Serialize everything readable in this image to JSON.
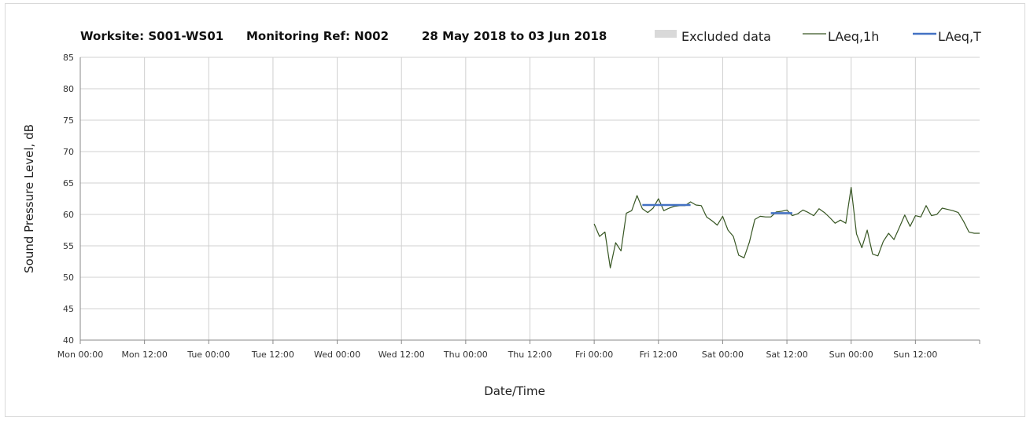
{
  "chart_data": {
    "type": "line",
    "title_parts": {
      "worksite": "Worksite: S001-WS01",
      "monitoring_ref": "Monitoring Ref: N002",
      "period": "28 May 2018 to 03 Jun 2018"
    },
    "xlabel": "Date/Time",
    "ylabel": "Sound Pressure Level, dB",
    "ylim": [
      40,
      85
    ],
    "yticks": [
      "40",
      "45",
      "50",
      "55",
      "60",
      "65",
      "70",
      "75",
      "80",
      "85"
    ],
    "xticks": [
      "Mon 00:00",
      "Mon 12:00",
      "Tue 00:00",
      "Tue 12:00",
      "Wed 00:00",
      "Wed 12:00",
      "Thu 00:00",
      "Thu 12:00",
      "Fri 00:00",
      "Fri 12:00",
      "Sat 00:00",
      "Sat 12:00",
      "Sun 00:00",
      "Sun 12:00"
    ],
    "xlim_hours": [
      0,
      168
    ],
    "grid": true,
    "legend_position": "top-right",
    "legend": [
      {
        "label": "Excluded data",
        "color": "#d9d9d9",
        "kind": "box"
      },
      {
        "label": "LAeq,1h",
        "color": "#375623",
        "kind": "line"
      },
      {
        "label": "LAeq,T",
        "color": "#4472c4",
        "kind": "line"
      }
    ],
    "series": [
      {
        "name": "LAeq,1h",
        "color": "#375623",
        "x_hours": [
          96,
          97,
          98,
          99,
          100,
          101,
          102,
          103,
          104,
          105,
          106,
          107,
          108,
          109,
          110,
          111,
          112,
          113,
          114,
          115,
          116,
          117,
          118,
          119,
          120,
          121,
          122,
          123,
          124,
          125,
          126,
          127,
          128,
          129,
          130,
          131,
          132,
          133,
          134,
          135,
          136,
          137,
          138,
          139,
          140,
          141,
          142,
          143,
          144,
          145,
          146,
          147,
          148,
          149,
          150,
          151,
          152,
          153,
          154,
          155,
          156,
          157,
          158,
          159,
          160,
          161,
          162,
          163,
          164,
          165,
          166,
          167,
          168
        ],
        "values": [
          58.5,
          56.5,
          57.2,
          51.5,
          55.5,
          54.2,
          60.2,
          60.6,
          63.0,
          60.9,
          60.3,
          61.0,
          62.5,
          60.6,
          61.0,
          61.3,
          61.4,
          61.4,
          62.0,
          61.5,
          61.4,
          59.6,
          59.0,
          58.3,
          59.7,
          57.5,
          56.5,
          53.5,
          53.1,
          55.6,
          59.2,
          59.7,
          59.6,
          59.6,
          60.4,
          60.5,
          60.7,
          59.8,
          60.1,
          60.7,
          60.3,
          59.8,
          60.9,
          60.3,
          59.5,
          58.6,
          59.1,
          58.6,
          64.3,
          56.9,
          54.7,
          57.5,
          53.7,
          53.4,
          55.7,
          57.0,
          56.0,
          57.9,
          59.9,
          58.1,
          59.8,
          59.6,
          61.4,
          59.8,
          60.0,
          61.0,
          60.8,
          60.6,
          60.3,
          58.9,
          57.2,
          57.0,
          57.0
        ]
      },
      {
        "name": "LAeq,T",
        "color": "#4472c4",
        "segments": [
          {
            "x_start": 105,
            "x_end": 114,
            "value": 61.5
          },
          {
            "x_start": 129,
            "x_end": 133,
            "value": 60.2
          }
        ]
      }
    ]
  }
}
